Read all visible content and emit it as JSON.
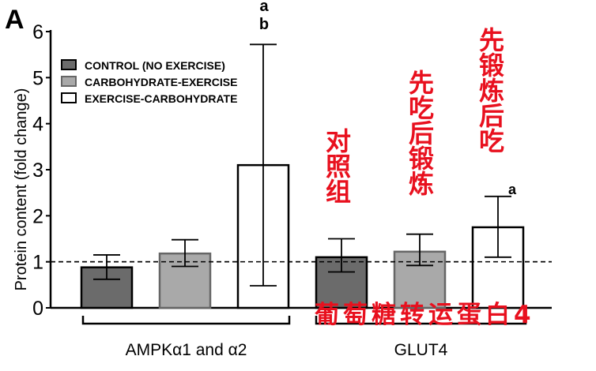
{
  "chart_data": {
    "type": "bar",
    "panel_label": "A",
    "ylabel": "Protein content (fold change)",
    "ylim": [
      0,
      6
    ],
    "yticks": [
      "0",
      "1",
      "2",
      "3",
      "4",
      "5",
      "6"
    ],
    "reference_line": 1,
    "categories": [
      "AMPKα1 and α2",
      "GLUT4"
    ],
    "legend": {
      "placement": "top-left",
      "entries": [
        "CONTROL (NO EXERCISE)",
        "CARBOHYDRATE-EXERCISE",
        "EXERCISE-CARBOHYDRATE"
      ]
    },
    "series": [
      {
        "name": "CONTROL (NO EXERCISE)",
        "color": "#6b6b6b",
        "values": [
          0.88,
          1.1
        ],
        "err_low": [
          0.62,
          0.78
        ],
        "err_high": [
          1.15,
          1.5
        ]
      },
      {
        "name": "CARBOHYDRATE-EXERCISE",
        "color": "#a9a9a9",
        "values": [
          1.18,
          1.22
        ],
        "err_low": [
          0.9,
          0.92
        ],
        "err_high": [
          1.48,
          1.6
        ]
      },
      {
        "name": "EXERCISE-CARBOHYDRATE",
        "color": "#ffffff",
        "values": [
          3.1,
          1.75
        ],
        "err_low": [
          0.48,
          1.1
        ],
        "err_high": [
          5.72,
          2.42
        ]
      }
    ],
    "annotations": {
      "ampk_ex_carb": [
        "a",
        "b"
      ],
      "glut4_ex_carb": "a"
    }
  },
  "overlay_labels": {
    "control": "对照组",
    "carb_ex": "先吃后锻炼",
    "ex_carb": "先锻炼后吃",
    "glut4": "葡萄糖转运蛋白4"
  }
}
